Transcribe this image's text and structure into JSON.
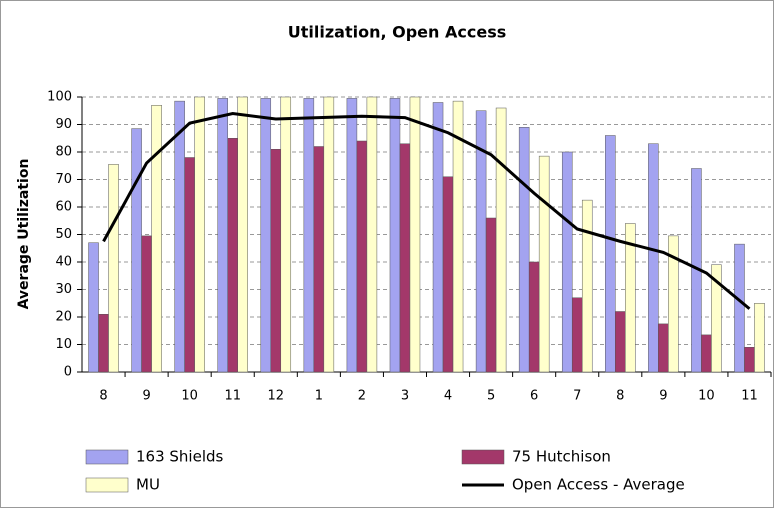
{
  "chart_data": {
    "type": "bar",
    "title": "Utilization, Open Access",
    "y_label": "Average Utilization",
    "categories": [
      "8",
      "9",
      "10",
      "11",
      "12",
      "1",
      "2",
      "3",
      "4",
      "5",
      "6",
      "7",
      "8",
      "9",
      "10",
      "11"
    ],
    "series": [
      {
        "name": "163 Shields",
        "color": "#a3a3f0",
        "values": [
          47,
          88.5,
          98.5,
          99.5,
          99.5,
          99.5,
          99.5,
          99.5,
          98,
          95,
          89,
          80,
          86,
          83,
          74,
          46.5
        ]
      },
      {
        "name": "75 Hutchison",
        "color": "#a3386a",
        "values": [
          21,
          49.5,
          78,
          85,
          81,
          82,
          84,
          83,
          71,
          56,
          40,
          27,
          22,
          17.5,
          13.5,
          9
        ]
      },
      {
        "name": "MU",
        "color": "#ffffcc",
        "values": [
          75.5,
          97,
          100,
          100,
          100,
          100,
          100,
          100,
          98.5,
          96,
          78.5,
          62.5,
          54,
          49.5,
          39,
          25
        ]
      },
      {
        "name": "Open Access - Average",
        "type": "line",
        "color": "#000000",
        "values": [
          47.5,
          76,
          90.5,
          94,
          92,
          92.5,
          93,
          92.5,
          87,
          79,
          65,
          52,
          47.5,
          43.5,
          36,
          23
        ]
      }
    ],
    "ylim": [
      0,
      100
    ],
    "yticks": [
      0,
      10,
      20,
      30,
      40,
      50,
      60,
      70,
      80,
      90,
      100
    ],
    "grid": true
  }
}
